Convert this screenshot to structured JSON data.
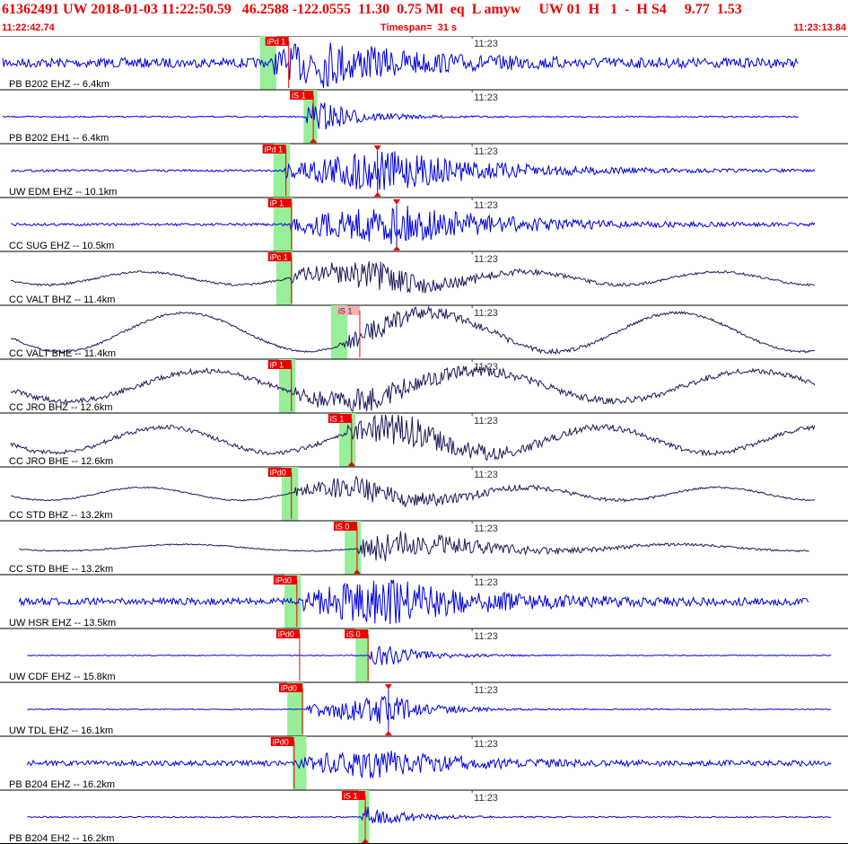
{
  "header": {
    "title": "61362491 UW 2018-01-03 11:22:50.59   46.2588 -122.0555  11.30  0.75 Ml  eq  L amyw     UW 01  H   1  -  H S4     9.77  1.53",
    "time_start": "11:22:42.74",
    "timespan": "Timespan=  31 s",
    "time_end": "11:23:13.84"
  },
  "colors": {
    "blue_trace": "#0000dd",
    "navy_trace": "#1a1a5a",
    "pick": "#ee0000",
    "pick_weak": "#ffb0b0",
    "window": "#99ee99",
    "tick": "#444444"
  },
  "chart_data": {
    "type": "line",
    "title": "61362491 UW 2018-01-03 11:22:50.59",
    "xlabel": "",
    "xlim": [
      "11:22:42.74",
      "11:23:13.84"
    ],
    "minute_mark": "11:23",
    "minute_mark_sec": 17.26,
    "timespan_s": 31,
    "traces": [
      {
        "label": "PB B202 EHZ -- 6.4km",
        "color": "blue",
        "noise": 0.22,
        "start": 0.1,
        "end": 29.2,
        "onset": 10.0,
        "peak": 11.7,
        "amp": 1.0,
        "decay": 3.2,
        "drift": 0,
        "period": 6,
        "picks": [
          {
            "label": "iPd 1",
            "t": 9.7,
            "tri": false
          }
        ],
        "band": [
          9.5,
          10.1
        ]
      },
      {
        "label": "PB B202 EH1 -- 6.4km",
        "color": "blue",
        "noise": 0.03,
        "start": 0.1,
        "end": 29.2,
        "onset": 11.2,
        "peak": 11.5,
        "amp": 0.9,
        "decay": 1.4,
        "drift": 0,
        "period": 6,
        "picks": [
          {
            "label": "iS 1",
            "t": 10.6,
            "tri": true
          }
        ],
        "band": [
          11.1,
          11.6
        ]
      },
      {
        "label": "UW EDM EHZ -- 10.1km",
        "color": "blue",
        "noise": 0.05,
        "start": 0.4,
        "end": 29.8,
        "onset": 10.4,
        "peak": 13.8,
        "amp": 1.0,
        "decay": 4.0,
        "drift": 0,
        "period": 6,
        "picks": [
          {
            "label": "iPd 1",
            "t": 9.6,
            "tri": false
          },
          {
            "label": "",
            "t": 13.8,
            "tri": true
          }
        ],
        "band": [
          10.0,
          10.6
        ]
      },
      {
        "label": "CC SUG EHZ -- 10.5km",
        "color": "blue",
        "noise": 0.06,
        "start": 0.4,
        "end": 29.8,
        "onset": 10.6,
        "peak": 14.5,
        "amp": 0.9,
        "decay": 4.0,
        "drift": 0,
        "period": 6,
        "picks": [
          {
            "label": "iP 1",
            "t": 9.8,
            "tri": false
          },
          {
            "label": "",
            "t": 14.5,
            "tri": true
          }
        ],
        "band": [
          10.0,
          10.7
        ]
      },
      {
        "label": "CC VALT BHZ -- 11.4km",
        "color": "navy",
        "noise": 0.05,
        "start": 0.4,
        "end": 29.8,
        "onset": 10.6,
        "peak": 13.9,
        "amp": 0.7,
        "decay": 2.5,
        "drift": 0.3,
        "period": 7,
        "picks": [
          {
            "label": "iPc 1",
            "t": 9.8,
            "tri": false
          }
        ],
        "band": [
          10.1,
          10.7
        ]
      },
      {
        "label": "CC VALT BHE -- 11.4km",
        "color": "navy",
        "noise": 0.05,
        "start": 0.4,
        "end": 29.8,
        "onset": 12.4,
        "peak": 13.5,
        "amp": 0.5,
        "decay": 3.0,
        "drift": 0.9,
        "period": 9,
        "picks": [
          {
            "label": "iS 1",
            "t": 12.3,
            "tri": false,
            "weak": true
          }
        ],
        "band": [
          12.1,
          12.7
        ]
      },
      {
        "label": "CC JRO BHZ -- 12.6km",
        "color": "navy",
        "noise": 0.12,
        "start": 0.4,
        "end": 29.8,
        "onset": 10.7,
        "peak": 13.5,
        "amp": 0.5,
        "decay": 3.0,
        "drift": 0.7,
        "period": 10,
        "picks": [
          {
            "label": "iP 1",
            "t": 9.8,
            "tri": false
          }
        ],
        "band": [
          10.2,
          10.8
        ]
      },
      {
        "label": "CC JRO BHE -- 12.6km",
        "color": "navy",
        "noise": 0.1,
        "start": 0.4,
        "end": 29.8,
        "onset": 12.7,
        "peak": 14.3,
        "amp": 0.8,
        "decay": 3.0,
        "drift": 0.6,
        "period": 8,
        "picks": [
          {
            "label": "iS 1",
            "t": 12.0,
            "tri": true
          }
        ],
        "band": [
          12.4,
          13.0
        ]
      },
      {
        "label": "CC STD BHZ -- 13.2km",
        "color": "navy",
        "noise": 0.03,
        "start": 0.4,
        "end": 29.8,
        "onset": 10.8,
        "peak": 13.2,
        "amp": 0.6,
        "decay": 3.5,
        "drift": 0.3,
        "period": 7,
        "picks": [
          {
            "label": "iPd0",
            "t": 9.8,
            "tri": false
          }
        ],
        "band": [
          10.3,
          10.9
        ]
      },
      {
        "label": "CC STD BHE -- 13.2km",
        "color": "navy",
        "noise": 0.03,
        "start": 0.7,
        "end": 29.6,
        "onset": 13.1,
        "peak": 13.8,
        "amp": 0.8,
        "decay": 3.5,
        "drift": 0.15,
        "period": 9,
        "picks": [
          {
            "label": "iS 0",
            "t": 12.2,
            "tri": true
          }
        ],
        "band": [
          12.6,
          13.2
        ]
      },
      {
        "label": "UW HSR EHZ -- 13.5km",
        "color": "blue",
        "noise": 0.16,
        "start": 0.7,
        "end": 29.6,
        "onset": 11.1,
        "peak": 14.0,
        "amp": 1.0,
        "decay": 3.5,
        "drift": 0,
        "period": 6,
        "picks": [
          {
            "label": "iPd0",
            "t": 10.0,
            "tri": false
          }
        ],
        "band": [
          10.4,
          11.0
        ]
      },
      {
        "label": "UW CDF EHZ -- 15.8km",
        "color": "blue",
        "noise": 0.02,
        "start": 1.0,
        "end": 30.4,
        "onset": 13.5,
        "peak": 13.8,
        "amp": 0.6,
        "decay": 1.5,
        "drift": 0,
        "period": 6,
        "picks": [
          {
            "label": "iPd0",
            "t": 10.1,
            "tri": false
          },
          {
            "label": "iS 0",
            "t": 12.6,
            "tri": false
          }
        ],
        "band": [
          13.0,
          13.5
        ]
      },
      {
        "label": "UW TDL EHZ -- 16.1km",
        "color": "blue",
        "noise": 0.02,
        "start": 1.0,
        "end": 30.4,
        "onset": 11.2,
        "peak": 14.2,
        "amp": 0.7,
        "decay": 1.5,
        "drift": 0,
        "period": 6,
        "picks": [
          {
            "label": "iPd0",
            "t": 10.2,
            "tri": false
          },
          {
            "label": "",
            "t": 14.2,
            "tri": true
          }
        ],
        "band": [
          10.5,
          11.1
        ]
      },
      {
        "label": "PB B204 EHZ -- 16.2km",
        "color": "blue",
        "noise": 0.12,
        "start": 1.0,
        "end": 30.4,
        "onset": 10.9,
        "peak": 13.6,
        "amp": 0.6,
        "decay": 3.0,
        "drift": 0,
        "period": 6,
        "picks": [
          {
            "label": "iPd0",
            "t": 9.9,
            "tri": false
          }
        ],
        "band": [
          10.7,
          11.2
        ]
      },
      {
        "label": "PB B204 EH2 -- 16.2km",
        "color": "blue",
        "noise": 0.03,
        "start": 1.0,
        "end": 30.4,
        "onset": 13.2,
        "peak": 13.4,
        "amp": 0.5,
        "decay": 1.4,
        "drift": 0,
        "period": 6,
        "picks": [
          {
            "label": "iS 1",
            "t": 12.5,
            "tri": true
          }
        ],
        "band": [
          13.1,
          13.5
        ]
      }
    ]
  }
}
